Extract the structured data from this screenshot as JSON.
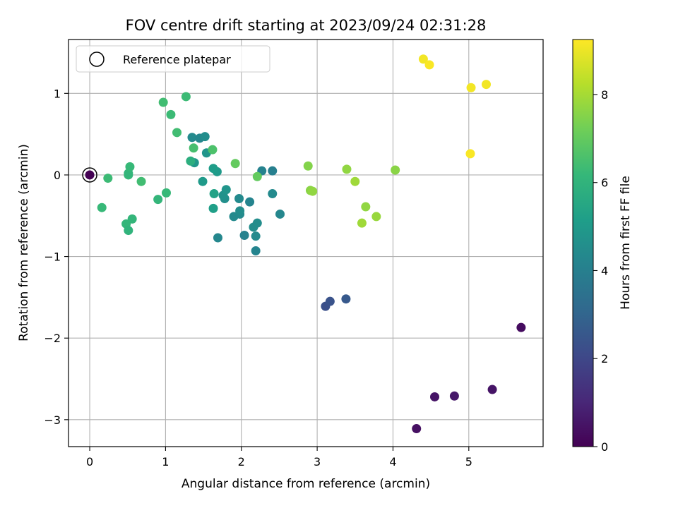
{
  "chart_data": {
    "type": "scatter",
    "title": "FOV centre drift starting at 2023/09/24 02:31:28",
    "xlabel": "Angular distance from reference (arcmin)",
    "ylabel": "Rotation from reference (arcmin)",
    "xlim": [
      -0.28,
      5.98
    ],
    "ylim": [
      -3.33,
      1.66
    ],
    "xticks": [
      0,
      1,
      2,
      3,
      4,
      5
    ],
    "yticks": [
      -3,
      -2,
      -1,
      0,
      1
    ],
    "grid": true,
    "legend": {
      "placement": "top-left",
      "entries": [
        {
          "label": "Reference platepar",
          "marker": "open-circle",
          "color": "#000000",
          "x": 0,
          "y": 0
        }
      ]
    },
    "colorbar": {
      "label": "Hours from first FF file",
      "colormap": "viridis",
      "range": [
        0,
        9.25
      ],
      "ticks": [
        0,
        2,
        4,
        6,
        8
      ]
    },
    "colormap_stops": [
      "#440154",
      "#482878",
      "#3e4989",
      "#31688e",
      "#26828e",
      "#1f9e89",
      "#35b779",
      "#6ece58",
      "#b5de2b",
      "#fde725"
    ],
    "points": [
      {
        "x": 0.0,
        "y": 0.0,
        "c": 0.0
      },
      {
        "x": 4.31,
        "y": -3.11,
        "c": 0.4
      },
      {
        "x": 4.55,
        "y": -2.72,
        "c": 0.5
      },
      {
        "x": 4.81,
        "y": -2.71,
        "c": 0.6
      },
      {
        "x": 5.31,
        "y": -2.63,
        "c": 0.5
      },
      {
        "x": 5.69,
        "y": -1.87,
        "c": 0.3
      },
      {
        "x": 3.11,
        "y": -1.61,
        "c": 2.3
      },
      {
        "x": 3.17,
        "y": -1.55,
        "c": 2.4
      },
      {
        "x": 3.38,
        "y": -1.52,
        "c": 2.6
      },
      {
        "x": 2.19,
        "y": -0.93,
        "c": 4.2
      },
      {
        "x": 1.69,
        "y": -0.77,
        "c": 4.3
      },
      {
        "x": 2.04,
        "y": -0.74,
        "c": 4.1
      },
      {
        "x": 2.19,
        "y": -0.75,
        "c": 4.4
      },
      {
        "x": 2.16,
        "y": -0.64,
        "c": 4.5
      },
      {
        "x": 2.21,
        "y": -0.59,
        "c": 4.5
      },
      {
        "x": 1.9,
        "y": -0.51,
        "c": 4.4
      },
      {
        "x": 1.98,
        "y": -0.48,
        "c": 4.4
      },
      {
        "x": 1.98,
        "y": -0.44,
        "c": 4.5
      },
      {
        "x": 2.51,
        "y": -0.48,
        "c": 4.3
      },
      {
        "x": 2.11,
        "y": -0.33,
        "c": 4.2
      },
      {
        "x": 1.97,
        "y": -0.29,
        "c": 4.4
      },
      {
        "x": 1.78,
        "y": -0.29,
        "c": 4.6
      },
      {
        "x": 1.76,
        "y": -0.25,
        "c": 4.7
      },
      {
        "x": 1.8,
        "y": -0.18,
        "c": 4.8
      },
      {
        "x": 2.41,
        "y": -0.23,
        "c": 4.4
      },
      {
        "x": 1.64,
        "y": -0.23,
        "c": 5.3
      },
      {
        "x": 1.63,
        "y": -0.41,
        "c": 5.2
      },
      {
        "x": 1.49,
        "y": -0.08,
        "c": 5.0
      },
      {
        "x": 2.27,
        "y": 0.05,
        "c": 4.1
      },
      {
        "x": 2.41,
        "y": 0.05,
        "c": 4.0
      },
      {
        "x": 1.68,
        "y": 0.04,
        "c": 5.0
      },
      {
        "x": 1.63,
        "y": 0.08,
        "c": 5.1
      },
      {
        "x": 1.38,
        "y": 0.15,
        "c": 4.9
      },
      {
        "x": 1.33,
        "y": 0.17,
        "c": 5.8
      },
      {
        "x": 1.54,
        "y": 0.27,
        "c": 4.8
      },
      {
        "x": 1.35,
        "y": 0.46,
        "c": 4.4
      },
      {
        "x": 1.45,
        "y": 0.45,
        "c": 4.3
      },
      {
        "x": 1.52,
        "y": 0.47,
        "c": 4.5
      },
      {
        "x": 1.37,
        "y": 0.33,
        "c": 6.5
      },
      {
        "x": 1.62,
        "y": 0.31,
        "c": 6.6
      },
      {
        "x": 1.27,
        "y": 0.96,
        "c": 6.3
      },
      {
        "x": 0.97,
        "y": 0.89,
        "c": 6.4
      },
      {
        "x": 1.07,
        "y": 0.74,
        "c": 6.3
      },
      {
        "x": 1.15,
        "y": 0.52,
        "c": 6.4
      },
      {
        "x": 0.16,
        "y": -0.4,
        "c": 6.2
      },
      {
        "x": 0.24,
        "y": -0.04,
        "c": 6.3
      },
      {
        "x": 0.51,
        "y": 0.0,
        "c": 6.2
      },
      {
        "x": 0.51,
        "y": 0.02,
        "c": 6.1
      },
      {
        "x": 0.53,
        "y": 0.1,
        "c": 6.2
      },
      {
        "x": 0.68,
        "y": -0.08,
        "c": 6.4
      },
      {
        "x": 0.48,
        "y": -0.6,
        "c": 6.1
      },
      {
        "x": 0.51,
        "y": -0.68,
        "c": 6.0
      },
      {
        "x": 0.56,
        "y": -0.54,
        "c": 6.1
      },
      {
        "x": 0.9,
        "y": -0.3,
        "c": 6.1
      },
      {
        "x": 1.01,
        "y": -0.22,
        "c": 6.2
      },
      {
        "x": 1.92,
        "y": 0.14,
        "c": 7.0
      },
      {
        "x": 2.21,
        "y": -0.02,
        "c": 7.0
      },
      {
        "x": 2.88,
        "y": 0.11,
        "c": 7.5
      },
      {
        "x": 2.91,
        "y": -0.19,
        "c": 7.6
      },
      {
        "x": 2.94,
        "y": -0.2,
        "c": 7.7
      },
      {
        "x": 3.39,
        "y": 0.07,
        "c": 7.7
      },
      {
        "x": 3.5,
        "y": -0.08,
        "c": 7.9
      },
      {
        "x": 4.03,
        "y": 0.06,
        "c": 7.6
      },
      {
        "x": 3.64,
        "y": -0.39,
        "c": 7.7
      },
      {
        "x": 3.59,
        "y": -0.59,
        "c": 7.9
      },
      {
        "x": 3.78,
        "y": -0.51,
        "c": 7.8
      },
      {
        "x": 4.4,
        "y": 1.42,
        "c": 9.1
      },
      {
        "x": 4.48,
        "y": 1.35,
        "c": 9.2
      },
      {
        "x": 5.03,
        "y": 1.07,
        "c": 9.1
      },
      {
        "x": 5.23,
        "y": 1.11,
        "c": 9.1
      },
      {
        "x": 5.02,
        "y": 0.26,
        "c": 9.2
      }
    ]
  }
}
